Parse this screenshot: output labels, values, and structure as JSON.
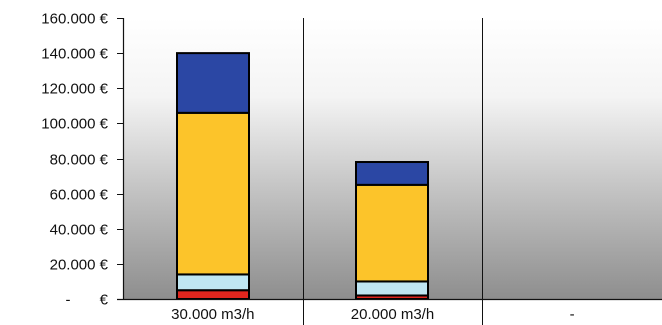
{
  "chart_data": {
    "type": "bar",
    "stacked": true,
    "title": "",
    "xlabel": "",
    "ylabel": "",
    "categories": [
      "30.000 m3/h",
      "20.000 m3/h",
      "-"
    ],
    "series": [
      {
        "color": "#e0261e",
        "values": [
          5000,
          2000,
          0
        ]
      },
      {
        "color": "#bfe6f2",
        "values": [
          9000,
          8000,
          0
        ]
      },
      {
        "color": "#fcc42a",
        "values": [
          92000,
          55000,
          0
        ]
      },
      {
        "color": "#2b47a4",
        "values": [
          34000,
          13000,
          0
        ]
      }
    ],
    "ylim": [
      0,
      160000
    ],
    "yticks": [
      0,
      20000,
      40000,
      60000,
      80000,
      100000,
      120000,
      140000,
      160000
    ],
    "ytick_labels": [
      "-       €",
      "20.000 €",
      "40.000 €",
      "60.000 €",
      "80.000 €",
      "100.000 €",
      "120.000 €",
      "140.000 €",
      "160.000 €"
    ],
    "grid": false,
    "legend": "none",
    "plot_background": "gradient white to gray"
  }
}
